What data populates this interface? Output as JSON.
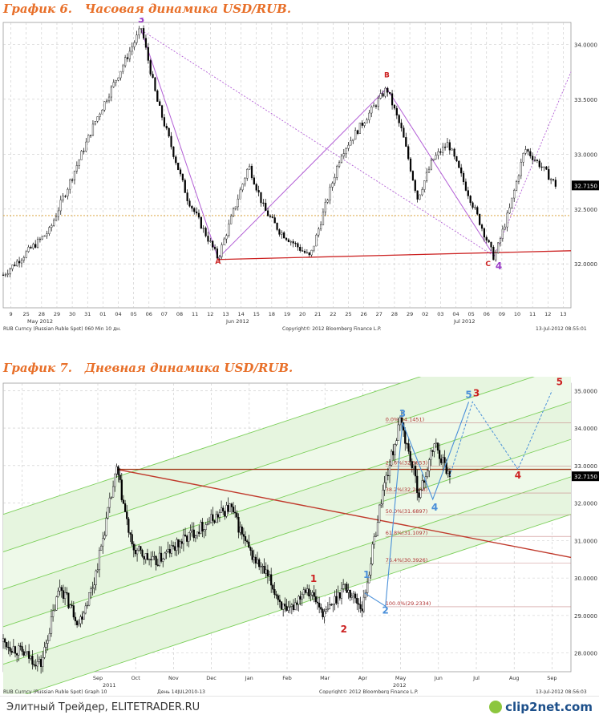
{
  "chart_data": [
    {
      "type": "line",
      "title": "График 6.   Часовая динамика USD/RUB.",
      "ylim": [
        31.6,
        34.2
      ],
      "y_ticks": [
        "32.0000",
        "32.5000",
        "33.0000",
        "33.5000",
        "34.0000"
      ],
      "x_ticks": [
        "9",
        "25",
        "28",
        "29",
        "30",
        "31",
        "01",
        "04",
        "05",
        "06",
        "07",
        "08",
        "11",
        "12",
        "13",
        "14",
        "15",
        "18",
        "19",
        "20",
        "21",
        "22",
        "25",
        "26",
        "27",
        "28",
        "29",
        "02",
        "03",
        "04",
        "05",
        "06",
        "09",
        "10",
        "11",
        "12",
        "13"
      ],
      "x_month_labels": [
        "May 2012",
        "Jun 2012",
        "Jul 2012"
      ],
      "last_value_label": "32.7150",
      "series": [
        {
          "x": [
            0,
            3,
            6,
            9,
            10,
            12,
            14,
            16,
            17,
            18,
            20,
            22,
            25,
            26,
            27,
            28,
            29,
            31,
            32,
            33,
            34,
            35,
            36
          ],
          "y": [
            31.9,
            32.3,
            33.3,
            34.15,
            33.5,
            32.6,
            32.05,
            32.9,
            32.5,
            32.3,
            32.06,
            33.0,
            33.6,
            33.2,
            32.6,
            32.95,
            33.1,
            32.4,
            32.05,
            32.5,
            33.05,
            32.9,
            32.72
          ]
        }
      ],
      "wave_labels": [
        {
          "text": "3",
          "x": 9,
          "y": 34.2
        },
        {
          "text": "A",
          "x": 14,
          "y": 32.0
        },
        {
          "text": "B",
          "x": 25,
          "y": 33.7
        },
        {
          "text": "C",
          "x": 31.6,
          "y": 31.98
        },
        {
          "text": "4",
          "x": 32.3,
          "y": 31.95
        }
      ],
      "support_line": {
        "x": [
          14,
          37
        ],
        "y": [
          32.04,
          32.12
        ]
      },
      "horizontal_level": 32.44,
      "footer_left": "RUB Curncy (Russian Ruble Spot) 060 Min 10 дн.",
      "footer_center": "Copyright© 2012 Bloomberg Finance L.P.",
      "footer_right": "13-Jul-2012 08:55:01",
      "grid": true
    },
    {
      "type": "line",
      "title": "График 7.   Дневная динамика USD/RUB.",
      "ylim": [
        27.5,
        35.2
      ],
      "y_ticks": [
        "28.0000",
        "29.0000",
        "30.0000",
        "31.0000",
        "32.0000",
        "33.0000",
        "34.0000",
        "35.0000"
      ],
      "x_ticks": [
        "Jul",
        "Aug",
        "Sep",
        "Oct",
        "Nov",
        "Dec",
        "Jan",
        "Feb",
        "Mar",
        "Apr",
        "May",
        "Jun",
        "Jul",
        "Aug",
        "Sep"
      ],
      "x_year_labels": [
        "2011",
        "2012"
      ],
      "last_value_label": "32.7150",
      "series": [
        {
          "x": [
            0,
            1,
            1.5,
            2,
            2.4,
            3,
            3.4,
            4,
            5,
            6,
            6.5,
            7,
            7.5,
            8,
            8.5,
            9,
            9.5,
            10,
            10.5,
            11,
            11.4,
            11.8
          ],
          "y": [
            28.3,
            27.7,
            29.8,
            28.8,
            29.9,
            32.9,
            30.8,
            30.4,
            31.2,
            31.9,
            30.7,
            30.0,
            29.0,
            29.8,
            29.0,
            29.8,
            29.2,
            32.2,
            34.2,
            32.2,
            33.6,
            32.72
          ]
        }
      ],
      "fib_levels": [
        {
          "label": "0.0%(34.1451)",
          "value": 34.1451
        },
        {
          "label": "23.6%(32.9853)",
          "value": 32.9853
        },
        {
          "label": "38.2%(32.2688)",
          "value": 32.2688
        },
        {
          "label": "50.0%(31.6897)",
          "value": 31.6897
        },
        {
          "label": "61.8%(31.1097)",
          "value": 31.1097
        },
        {
          "label": "76.4%(30.3926)",
          "value": 30.3926
        },
        {
          "label": "100.0%(29.2334)",
          "value": 29.2334
        }
      ],
      "wave_labels": [
        {
          "text": "1",
          "x": 8.2,
          "y": 29.9,
          "color": "red"
        },
        {
          "text": "2",
          "x": 9.0,
          "y": 28.55,
          "color": "red"
        },
        {
          "text": "1",
          "x": 9.6,
          "y": 30.0,
          "color": "blue"
        },
        {
          "text": "2",
          "x": 10.1,
          "y": 29.05,
          "color": "blue"
        },
        {
          "text": "3",
          "x": 10.55,
          "y": 34.3,
          "color": "blue"
        },
        {
          "text": "4",
          "x": 11.4,
          "y": 31.8,
          "color": "blue"
        },
        {
          "text": "5",
          "x": 12.3,
          "y": 34.8,
          "color": "blue"
        },
        {
          "text": "3",
          "x": 12.5,
          "y": 34.85,
          "color": "red"
        },
        {
          "text": "4",
          "x": 13.6,
          "y": 32.65,
          "color": "red"
        },
        {
          "text": "5",
          "x": 14.7,
          "y": 35.15,
          "color": "red"
        }
      ],
      "forecast_path": {
        "x": [
          11.8,
          12.4,
          13.6,
          14.5
        ],
        "y": [
          32.72,
          34.7,
          32.9,
          35.0
        ]
      },
      "footer_left": "RUB Curncy (Russian Ruble Spot) Graph 10",
      "footer_mid": "День 14JUL2010-13",
      "footer_center": "Copyright© 2012 Bloomberg Finance L.P.",
      "footer_right": "13-Jul-2012 08:56:03",
      "grid": true
    }
  ],
  "footer": {
    "text": "Элитный Трейдер, ELITETRADER.RU",
    "logo": "clip2net.com",
    "logo_icon": "clip2net-logo-icon"
  }
}
